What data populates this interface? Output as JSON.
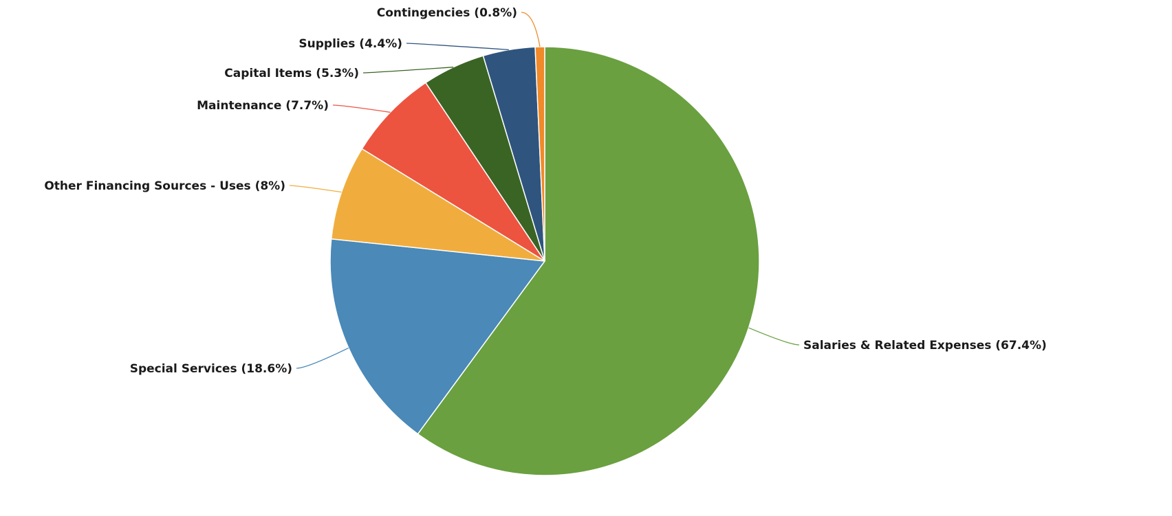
{
  "chart_data": {
    "type": "pie",
    "slices": [
      {
        "label": "Salaries & Related Expenses (67.4%)",
        "name": "Salaries & Related Expenses",
        "value": 67.4,
        "color": "#6aa040"
      },
      {
        "label": "Special Services (18.6%)",
        "name": "Special Services",
        "value": 18.6,
        "color": "#4a89b8"
      },
      {
        "label": "Other Financing Sources - Uses (8%)",
        "name": "Other Financing Sources - Uses",
        "value": 8,
        "color": "#f0ad3e"
      },
      {
        "label": "Maintenance (7.7%)",
        "name": "Maintenance",
        "value": 7.7,
        "color": "#ec5440"
      },
      {
        "label": "Capital Items (5.3%)",
        "name": "Capital Items",
        "value": 5.3,
        "color": "#3a6424"
      },
      {
        "label": "Supplies (4.4%)",
        "name": "Supplies",
        "value": 4.4,
        "color": "#2f557e"
      },
      {
        "label": "Contingencies (0.8%)",
        "name": "Contingencies",
        "value": 0.8,
        "color": "#f08a2a"
      }
    ],
    "legend": "none"
  }
}
